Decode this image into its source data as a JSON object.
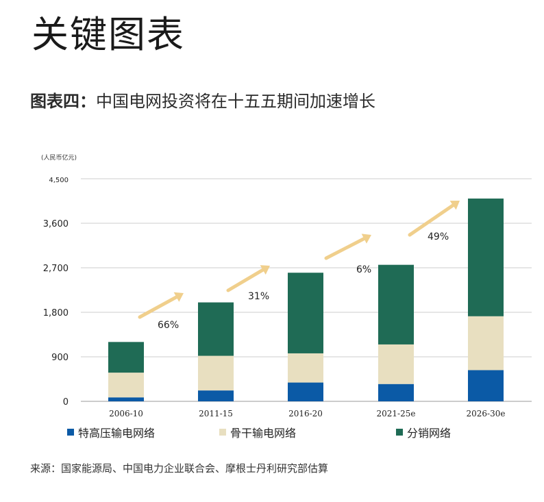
{
  "page_heading": "关键图表",
  "chart_title_prefix": "图表四：",
  "chart_title_text": "中国电网投资将在十五五期间加速增长",
  "source_text": "来源：国家能源局、中国电力企业联合会、摩根士丹利研究部估算",
  "colors": {
    "series_uhv": "#0b5aa6",
    "series_backbone": "#e8dfc0",
    "series_distribution": "#1f6b55",
    "arrow": "#f0cf8c",
    "grid": "#cccccc",
    "axis": "#999999"
  },
  "chart_data": {
    "type": "bar",
    "stacked": true,
    "title": "中国电网投资将在十五五期间加速增长",
    "ylabel": "(人民币亿元)",
    "ylim": [
      0,
      4500
    ],
    "yticks": [
      0,
      900,
      1800,
      2700,
      3600,
      4500
    ],
    "ytick_labels": [
      "0",
      "900",
      "1,800",
      "2,700",
      "3,600",
      "4,500"
    ],
    "categories": [
      "2006-10",
      "2011-15",
      "2016-20",
      "2021-25e",
      "2026-30e"
    ],
    "series": [
      {
        "name": "特高压输电网络",
        "color_key": "series_uhv",
        "values": [
          80,
          220,
          380,
          350,
          630
        ]
      },
      {
        "name": "骨干输电网络",
        "color_key": "series_backbone",
        "values": [
          500,
          700,
          590,
          800,
          1090
        ]
      },
      {
        "name": "分销网络",
        "color_key": "series_distribution",
        "values": [
          620,
          1080,
          1630,
          1610,
          2380
        ]
      }
    ],
    "growth_annotations": [
      {
        "label": "66%",
        "from_index": 0,
        "to_index": 1
      },
      {
        "label": "31%",
        "from_index": 1,
        "to_index": 2
      },
      {
        "label": "6%",
        "from_index": 2,
        "to_index": 3
      },
      {
        "label": "49%",
        "from_index": 3,
        "to_index": 4
      }
    ],
    "legend_position": "bottom"
  }
}
